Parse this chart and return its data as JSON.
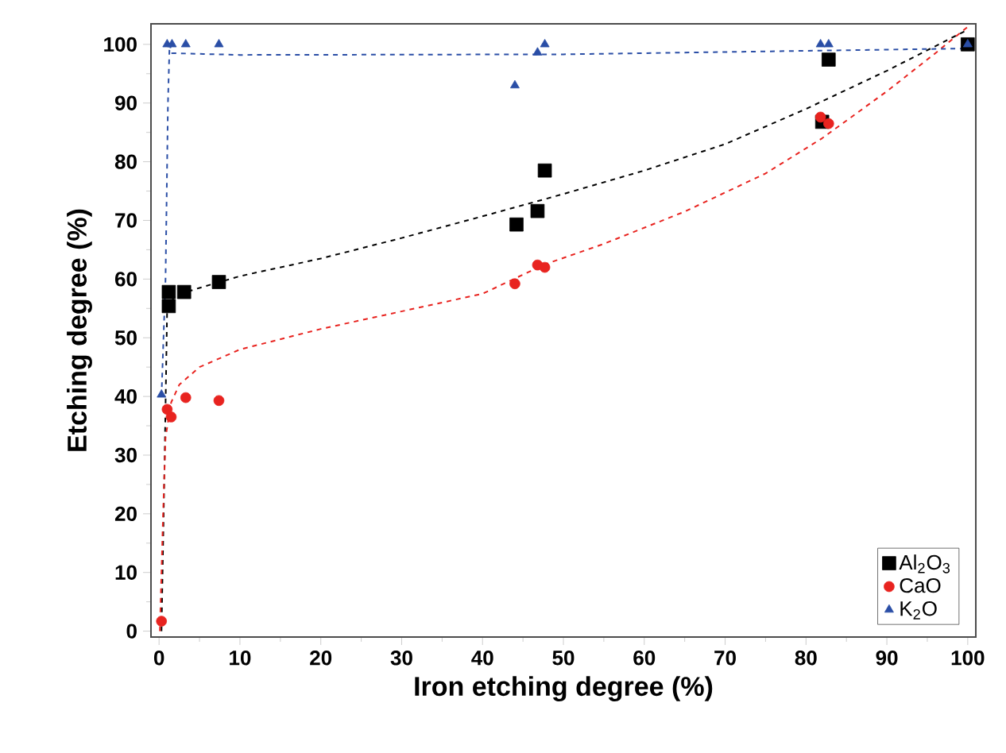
{
  "chart_data": {
    "type": "scatter",
    "xlabel": "Iron etching degree (%)",
    "ylabel": "Etching degree (%)",
    "xlim": [
      -1,
      101
    ],
    "ylim": [
      -1,
      103.5
    ],
    "xticks": [
      0,
      10,
      20,
      30,
      40,
      50,
      60,
      70,
      80,
      90,
      100
    ],
    "yticks": [
      0,
      10,
      20,
      30,
      40,
      50,
      60,
      70,
      80,
      90,
      100
    ],
    "legend": "bottom right",
    "grid": false,
    "series": [
      {
        "name": "Al$_{2}$O$_{3}$",
        "marker": "square",
        "color": "#000000",
        "x": [
          1.2,
          1.2,
          3.1,
          7.4,
          44.2,
          46.8,
          47.7,
          82,
          82.8,
          100
        ],
        "values": [
          55.4,
          57.8,
          57.8,
          59.5,
          69.3,
          71.6,
          78.5,
          86.8,
          97.4,
          100
        ]
      },
      {
        "name": "CaO",
        "marker": "circle",
        "color": "#e8231f",
        "x": [
          0.3,
          1,
          1.5,
          3.3,
          7.4,
          44,
          46.8,
          47.7,
          81.8,
          82.8
        ],
        "values": [
          1.7,
          37.8,
          36.5,
          39.8,
          39.3,
          59.2,
          62.4,
          62,
          87.6,
          86.5
        ]
      },
      {
        "name": "K$_{2}$O",
        "marker": "triangle",
        "color": "#2a4ea6",
        "x": [
          0.3,
          1,
          1.6,
          3.3,
          7.4,
          44,
          46.8,
          47.7,
          81.8,
          82.8,
          100
        ],
        "values": [
          40.3,
          100,
          100,
          100,
          100,
          93,
          98.6,
          100,
          100,
          100,
          100
        ]
      },
      {
        "type": "line",
        "line_style": "dashed",
        "color": "#000000",
        "x": [
          0.3,
          0.7,
          1,
          2,
          5,
          10,
          20,
          30,
          40,
          50,
          60,
          70,
          80,
          90,
          100
        ],
        "values": [
          0,
          30,
          55,
          57.2,
          58.5,
          60.5,
          63.5,
          67,
          70.7,
          74.5,
          78.5,
          83,
          89,
          95.5,
          102.5
        ]
      },
      {
        "type": "line",
        "line_style": "dashed",
        "color": "#e8231f",
        "x": [
          0.1,
          0.5,
          0.8,
          1.5,
          2.5,
          5,
          10,
          20,
          30,
          40,
          47.7,
          55,
          65,
          75,
          82,
          90,
          96,
          100
        ],
        "values": [
          0,
          20,
          33,
          39,
          42,
          45,
          48,
          51.5,
          54.5,
          57.5,
          62.5,
          66,
          71.5,
          78,
          84,
          92,
          98.5,
          103
        ]
      },
      {
        "type": "line",
        "line_style": "dashed",
        "color": "#2a4ea6",
        "x": [
          0.3,
          0.8,
          1.1,
          1.3,
          1.6,
          10,
          50,
          100
        ],
        "values": [
          40,
          60,
          90,
          100,
          98.5,
          98.2,
          98.3,
          99.3
        ]
      }
    ]
  }
}
